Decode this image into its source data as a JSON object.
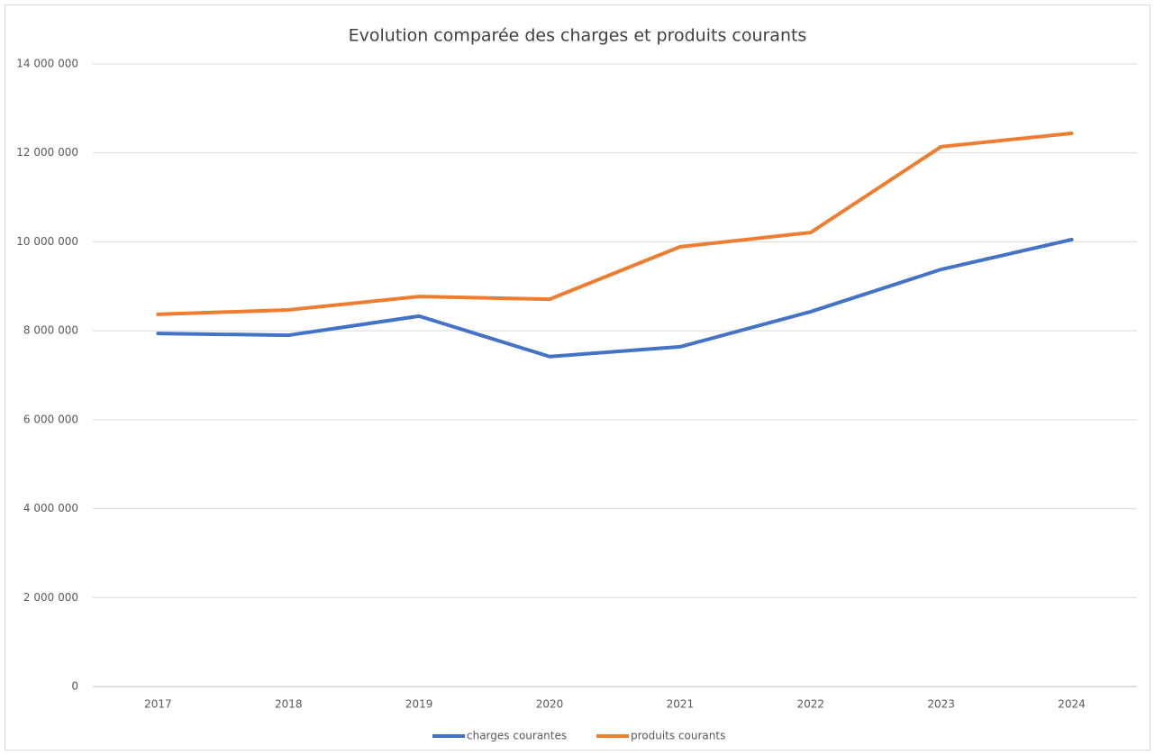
{
  "chart_data": {
    "type": "line",
    "title": "Evolution comparée des charges et produits courants",
    "categories": [
      "2017",
      "2018",
      "2019",
      "2020",
      "2021",
      "2022",
      "2023",
      "2024"
    ],
    "series": [
      {
        "name": "charges courantes",
        "color": "#4472c4",
        "values": [
          7940000,
          7900000,
          8330000,
          7420000,
          7640000,
          8430000,
          9380000,
          10050000
        ]
      },
      {
        "name": "produits courants",
        "color": "#ed7d31",
        "values": [
          8370000,
          8470000,
          8770000,
          8710000,
          9890000,
          10210000,
          12140000,
          12440000
        ]
      }
    ],
    "ylim": [
      0,
      14000000
    ],
    "yticks": [
      0,
      {
        "value": 2000000,
        "label": "2 000 000"
      },
      {
        "value": 4000000,
        "label": "4 000 000"
      },
      {
        "value": 6000000,
        "label": "6 000 000"
      },
      {
        "value": 8000000,
        "label": "8 000 000"
      },
      {
        "value": 10000000,
        "label": "10 000 000"
      },
      {
        "value": 12000000,
        "label": "12 000 000"
      },
      {
        "value": 14000000,
        "label": "14 000 000"
      }
    ],
    "grid": true,
    "legend": "bottom"
  }
}
